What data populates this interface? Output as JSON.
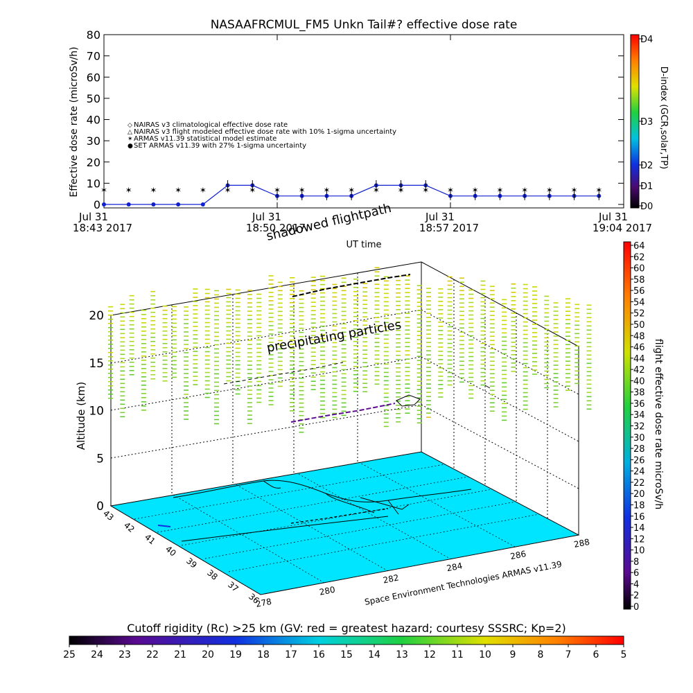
{
  "chart_data": [
    {
      "type": "line",
      "title": "NASAAFRCMUL_FM5 Unkn Tail#? effective dose rate",
      "ylabel": "Effective dose rate (microSv/h)",
      "xlabel": "UT time",
      "ylim": [
        0,
        80
      ],
      "yticks": [
        "0",
        "10",
        "20",
        "30",
        "40",
        "50",
        "60",
        "70",
        "80"
      ],
      "xticks": [
        {
          "line1": "Jul 31",
          "line2": "18:43 2017"
        },
        {
          "line1": "Jul 31",
          "line2": "18:50 2017"
        },
        {
          "line1": "Jul 31",
          "line2": "18:57 2017"
        },
        {
          "line1": "Jul 31",
          "line2": "19:04 2017"
        }
      ],
      "legend": [
        {
          "symbol": "◇",
          "color": "#e05050",
          "label": "NAIRAS v3 climatological effective dose rate"
        },
        {
          "symbol": "△",
          "color": "#000000",
          "label": "NAIRAS v3 flight modeled effective dose rate with 10% 1-sigma uncertainty"
        },
        {
          "symbol": "✶",
          "color": "#33cc33",
          "label": "ARMAS v11.39 statistical model estimate"
        },
        {
          "symbol": "●",
          "color": "#1020d0",
          "label": "SET ARMAS v11.39 with 27% 1-sigma uncertainty"
        }
      ],
      "series": [
        {
          "name": "SET ARMAS v11.39 with 27% 1-sigma uncertainty",
          "x_minutes": [
            0,
            1,
            2,
            3,
            4,
            5,
            6,
            7,
            8,
            9,
            10,
            11,
            12,
            13,
            14,
            15,
            16,
            17,
            18,
            19,
            20
          ],
          "values": [
            0,
            0,
            0,
            0,
            0,
            9,
            9,
            4,
            4,
            4,
            4,
            9,
            9,
            9,
            4,
            4,
            4,
            4,
            4,
            4,
            4
          ]
        },
        {
          "name": "ARMAS v11.39 statistical model estimate",
          "x_minutes": [
            0,
            1,
            2,
            3,
            4,
            5,
            6,
            7,
            8,
            9,
            10,
            11,
            12,
            13,
            14,
            15,
            16,
            17,
            18,
            19,
            20
          ],
          "values": [
            7,
            7,
            7,
            7,
            7,
            7,
            7,
            7,
            7,
            7,
            7,
            7,
            7,
            7,
            7,
            7,
            7,
            7,
            7,
            7,
            7
          ]
        }
      ],
      "right_axis": {
        "label": "D-index (GCR,solar,TP)",
        "ticks": [
          "D0",
          "D1",
          "D2",
          "D3",
          "D4"
        ]
      }
    },
    {
      "type": "scatter",
      "annotations": [
        "shadowed flightpath",
        "precipitating particles"
      ],
      "z_label": "Altitude (km)",
      "z_ticks": [
        "0",
        "5",
        "10",
        "15",
        "20"
      ],
      "lat_ticks": [
        "43",
        "42",
        "41",
        "40",
        "39",
        "38",
        "37",
        "36"
      ],
      "lon_ticks": [
        "278",
        "280",
        "282",
        "284",
        "286",
        "288"
      ],
      "credit": "Space Environment Technologies ARMAS v11.39",
      "colorbar": {
        "label": "flight effective dose rate microSv/h",
        "ticks": [
          "0",
          "2",
          "4",
          "6",
          "8",
          "10",
          "12",
          "14",
          "16",
          "18",
          "20",
          "22",
          "24",
          "26",
          "28",
          "30",
          "32",
          "34",
          "36",
          "38",
          "40",
          "42",
          "44",
          "46",
          "48",
          "50",
          "52",
          "54",
          "56",
          "58",
          "60",
          "62",
          "64"
        ]
      }
    },
    {
      "type": "heatmap",
      "title": "Cutoff rigidity (Rc) >25 km (GV: red = greatest hazard; courtesy SSSRC; Kp=2)",
      "ticks": [
        "25",
        "24",
        "23",
        "22",
        "21",
        "20",
        "19",
        "18",
        "17",
        "16",
        "15",
        "14",
        "13",
        "12",
        "11",
        "10",
        "9",
        "8",
        "7",
        "6",
        "5"
      ]
    }
  ]
}
